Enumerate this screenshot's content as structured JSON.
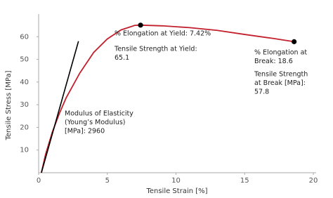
{
  "chart_data": {
    "type": "line",
    "x_label": "Tensile Strain [%]",
    "y_label": "Tensile Stress [MPa]",
    "xlim": [
      0,
      20
    ],
    "xticks": [
      0,
      5,
      10,
      15,
      20
    ],
    "ylim": [
      0,
      70
    ],
    "yticks": [
      10,
      20,
      30,
      40,
      50,
      60
    ],
    "series": [
      {
        "color": "#c3202d",
        "x": [
          0.2,
          0.5,
          1,
          1.5,
          2,
          3,
          4,
          5,
          6,
          7,
          7.42,
          9,
          11,
          13,
          15,
          17,
          18.6
        ],
        "values": [
          0,
          8,
          18,
          26,
          33,
          44,
          53,
          59,
          63,
          65,
          65.1,
          64.8,
          64,
          62.8,
          61,
          59.3,
          57.8
        ]
      },
      {
        "color": "#000000",
        "x": [
          0.2,
          2.9
        ],
        "values": [
          0,
          58
        ]
      }
    ],
    "points": {
      "color": "#000000",
      "x": [
        7.42,
        18.6
      ],
      "values": [
        65.1,
        57.8
      ]
    },
    "annotations": [
      [
        "% Elongation at Yield: 7.42%"
      ],
      [
        "Tensile Strength at Yield:",
        "65.1"
      ],
      [
        "% Elongation at",
        "Break: 18.6"
      ],
      [
        "Tensile Strength",
        "at Break [MPa]:",
        "57.8"
      ],
      [
        "Modulus of Elasticity",
        "(Young’s Modulus)",
        "[MPa]: 2960"
      ]
    ]
  }
}
